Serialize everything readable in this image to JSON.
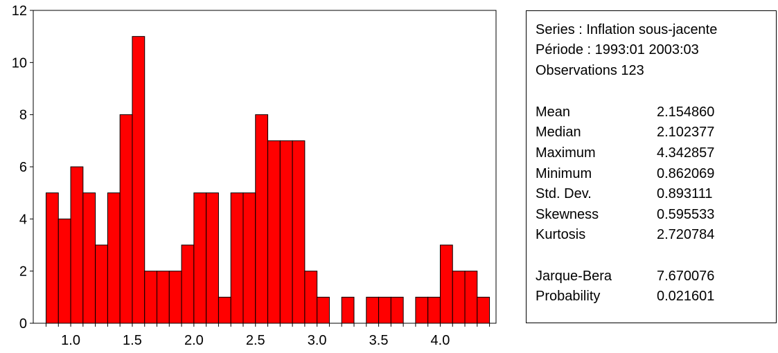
{
  "chart_data": {
    "type": "bar",
    "title": "",
    "xlabel": "",
    "ylabel": "",
    "bin_width": 0.1,
    "bins": [
      {
        "x0": 0.8,
        "count": 5
      },
      {
        "x0": 0.9,
        "count": 4
      },
      {
        "x0": 1.0,
        "count": 6
      },
      {
        "x0": 1.1,
        "count": 5
      },
      {
        "x0": 1.2,
        "count": 3
      },
      {
        "x0": 1.3,
        "count": 5
      },
      {
        "x0": 1.4,
        "count": 8
      },
      {
        "x0": 1.5,
        "count": 11
      },
      {
        "x0": 1.6,
        "count": 2
      },
      {
        "x0": 1.7,
        "count": 2
      },
      {
        "x0": 1.8,
        "count": 2
      },
      {
        "x0": 1.9,
        "count": 3
      },
      {
        "x0": 2.0,
        "count": 5
      },
      {
        "x0": 2.1,
        "count": 5
      },
      {
        "x0": 2.2,
        "count": 1
      },
      {
        "x0": 2.3,
        "count": 5
      },
      {
        "x0": 2.4,
        "count": 5
      },
      {
        "x0": 2.5,
        "count": 8
      },
      {
        "x0": 2.6,
        "count": 7
      },
      {
        "x0": 2.7,
        "count": 7
      },
      {
        "x0": 2.8,
        "count": 7
      },
      {
        "x0": 2.9,
        "count": 2
      },
      {
        "x0": 3.0,
        "count": 1
      },
      {
        "x0": 3.2,
        "count": 1
      },
      {
        "x0": 3.4,
        "count": 1
      },
      {
        "x0": 3.5,
        "count": 1
      },
      {
        "x0": 3.6,
        "count": 1
      },
      {
        "x0": 3.8,
        "count": 1
      },
      {
        "x0": 3.9,
        "count": 1
      },
      {
        "x0": 4.0,
        "count": 3
      },
      {
        "x0": 4.1,
        "count": 2
      },
      {
        "x0": 4.2,
        "count": 2
      },
      {
        "x0": 4.3,
        "count": 1
      }
    ],
    "xlim": [
      0.7,
      4.5
    ],
    "ylim": [
      0,
      12
    ],
    "x_ticks": [
      "1.0",
      "1.5",
      "2.0",
      "2.5",
      "3.0",
      "3.5",
      "4.0"
    ],
    "y_ticks": [
      "0",
      "2",
      "4",
      "6",
      "8",
      "10",
      "12"
    ],
    "grid": false,
    "bar_color": "#ff0000"
  },
  "stats": {
    "series_line": "Series : Inflation sous-jacente",
    "period_line": "Période : 1993:01 2003:03",
    "observations_line": "Observations  123",
    "rows": [
      {
        "label": "Mean",
        "value": "2.154860"
      },
      {
        "label": "Median",
        "value": "2.102377"
      },
      {
        "label": "Maximum",
        "value": "4.342857"
      },
      {
        "label": "Minimum",
        "value": "0.862069"
      },
      {
        "label": "Std. Dev.",
        "value": "0.893111"
      },
      {
        "label": "Skewness",
        "value": "0.595533"
      },
      {
        "label": "Kurtosis",
        "value": "2.720784"
      },
      {
        "label": "Jarque-Bera",
        "value": "7.670076"
      },
      {
        "label": "Probability",
        "value": "0.021601"
      }
    ]
  }
}
